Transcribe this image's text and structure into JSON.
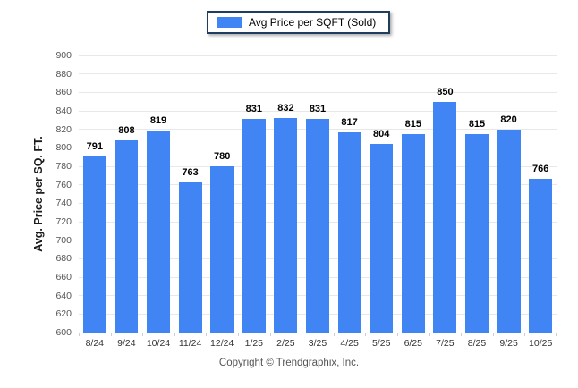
{
  "page": {
    "copyright": "Copyright © Trendgraphix, Inc."
  },
  "legend": {
    "label": "Avg Price per SQFT (Sold)",
    "swatch_color": "#4184F3"
  },
  "chart_data": {
    "type": "bar",
    "title": "",
    "series_name": "Avg Price per SQFT (Sold)",
    "categories": [
      "8/24",
      "9/24",
      "10/24",
      "11/24",
      "12/24",
      "1/25",
      "2/25",
      "3/25",
      "4/25",
      "5/25",
      "6/25",
      "7/25",
      "8/25",
      "9/25",
      "10/25"
    ],
    "values": [
      791,
      808,
      819,
      763,
      780,
      831,
      832,
      831,
      817,
      804,
      815,
      850,
      815,
      820,
      766
    ],
    "xlabel": "",
    "ylabel": "Avg. Price per SQ. FT.",
    "ylim": [
      600,
      900
    ],
    "ytick_step": 20,
    "grid": "horizontal",
    "legend_position": "top-center",
    "bar_color": "#4184F3",
    "value_labels": true
  }
}
